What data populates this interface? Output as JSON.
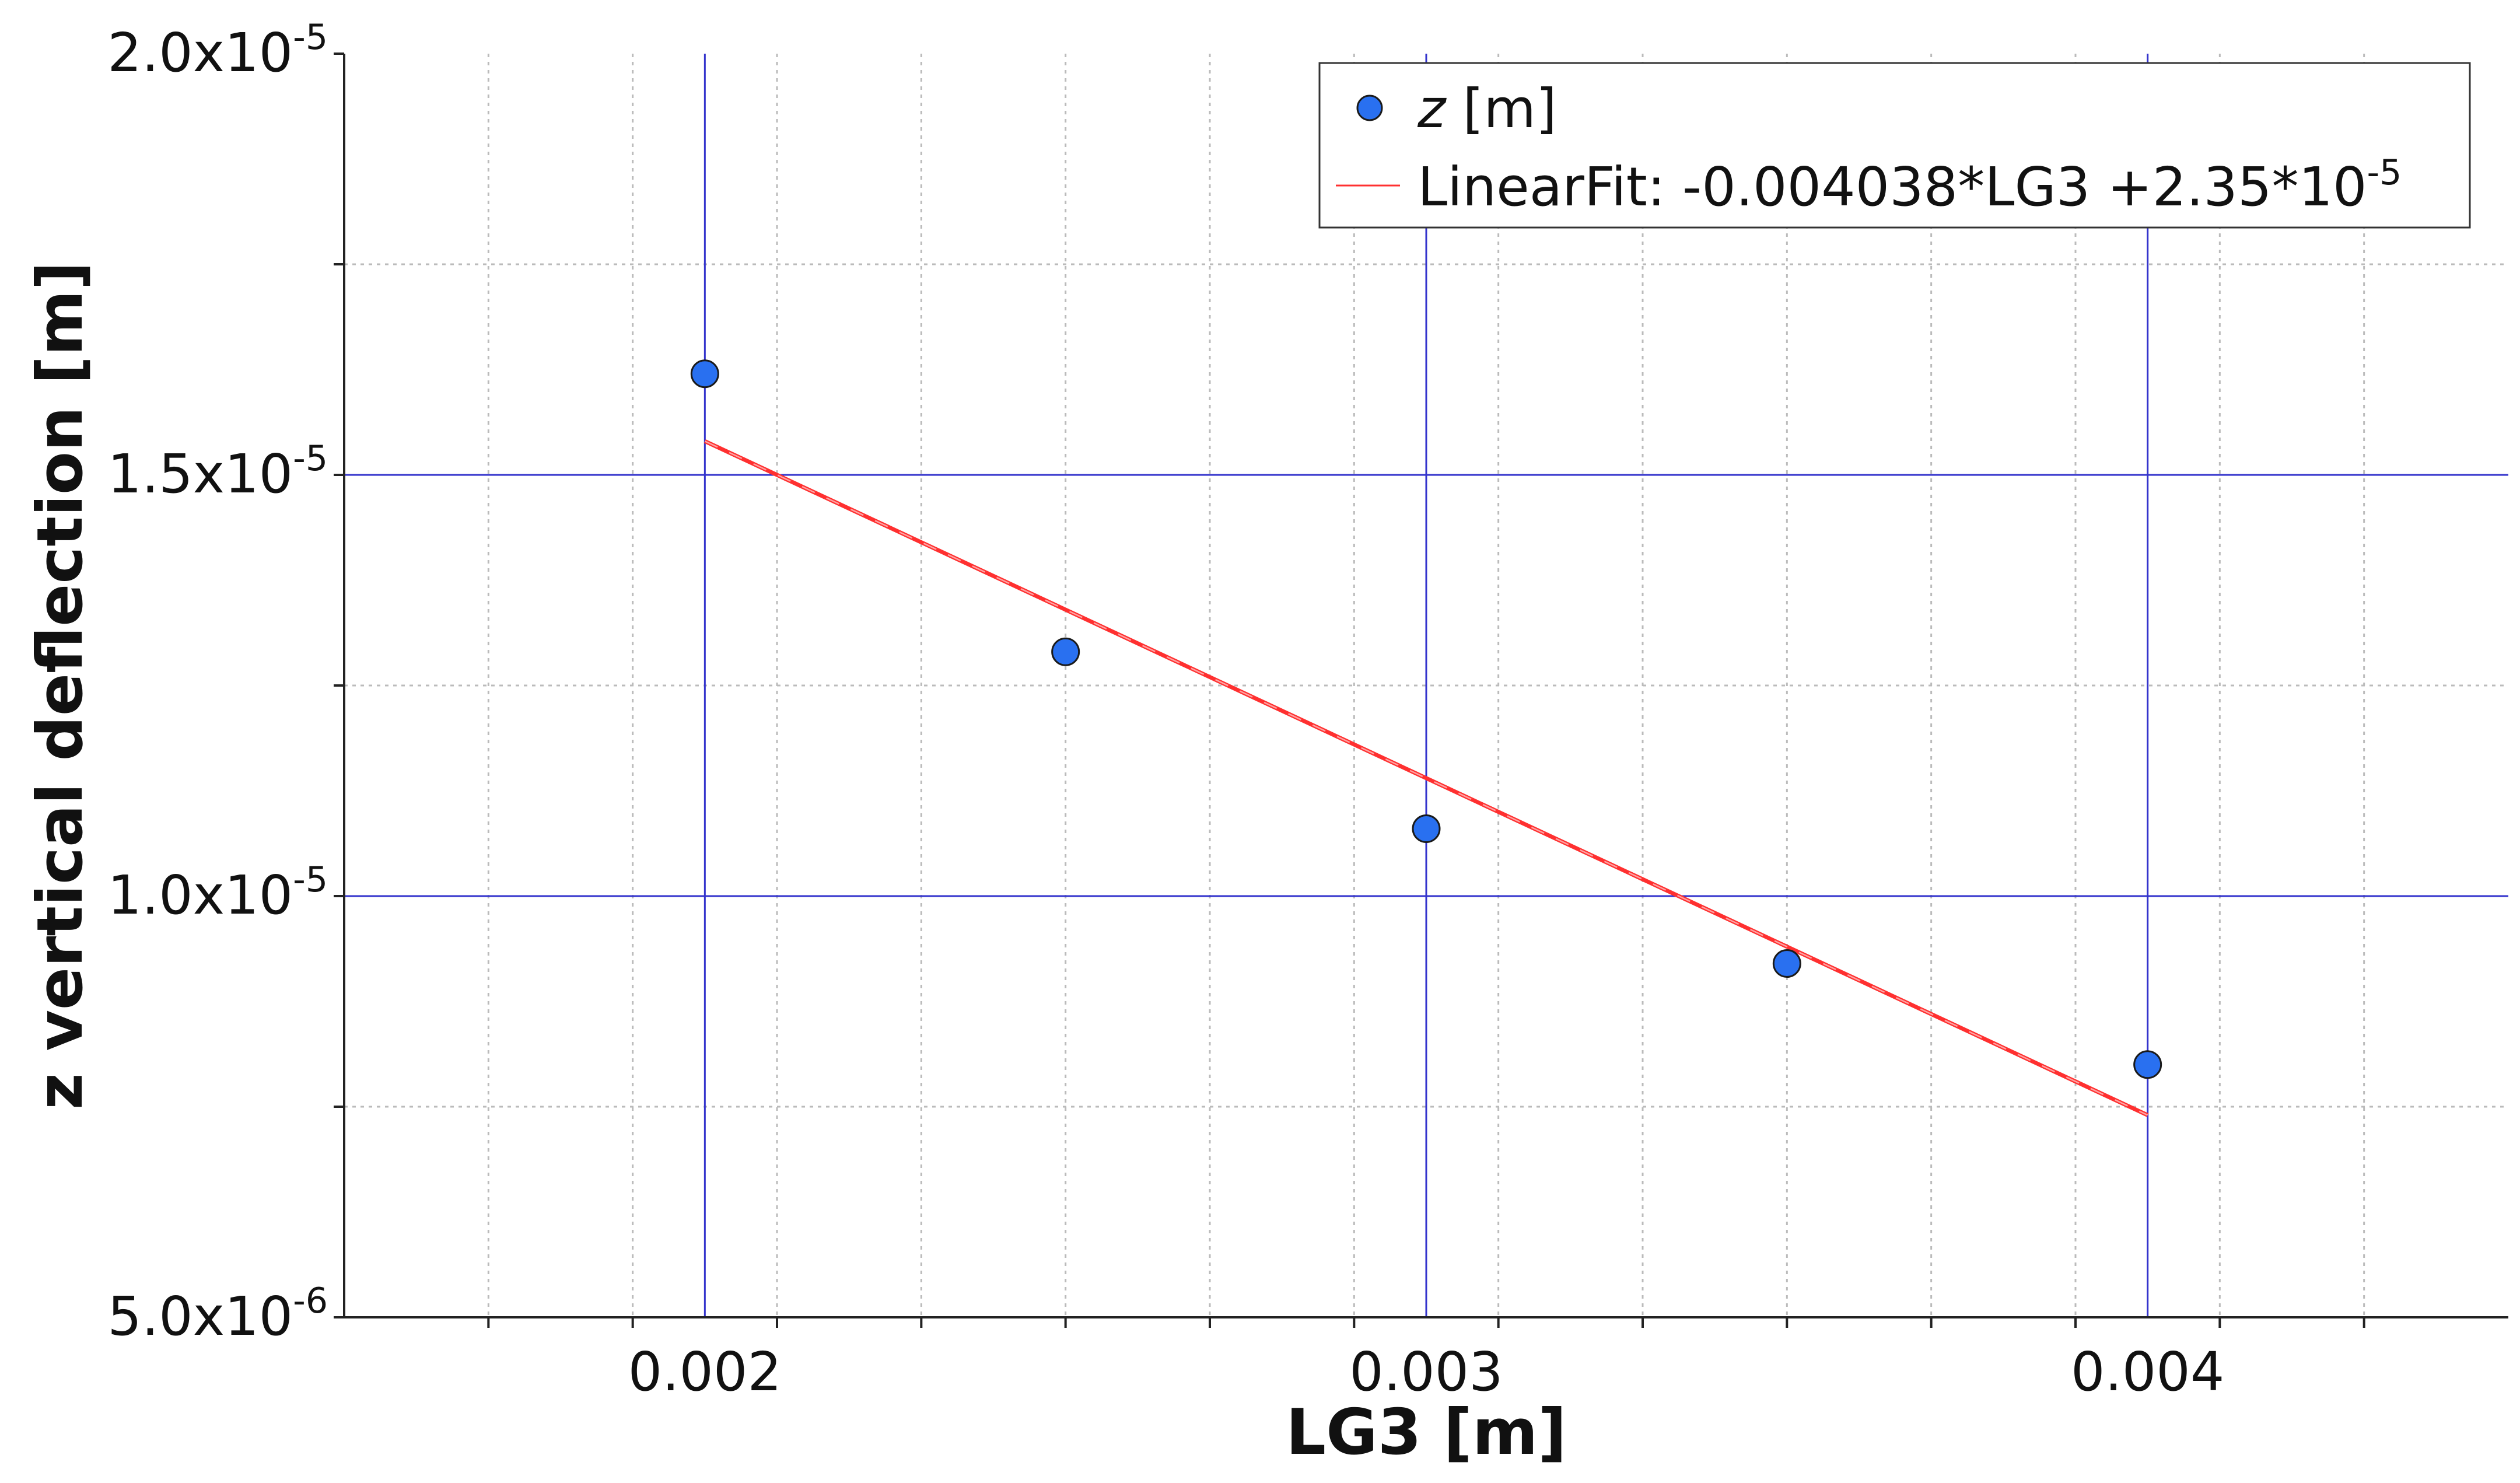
{
  "chart_data": {
    "type": "scatter",
    "xlabel": "LG3 [m]",
    "ylabel": "z vertical deflection [m]",
    "xlim": [
      0.0015,
      0.0045
    ],
    "ylim": [
      5e-06,
      2e-05
    ],
    "x_ticks": [
      {
        "value": 0.002,
        "label": "0.002"
      },
      {
        "value": 0.003,
        "label": "0.003"
      },
      {
        "value": 0.004,
        "label": "0.004"
      }
    ],
    "y_ticks": [
      {
        "value": 5e-06,
        "base": "5.0x10",
        "exp": "-6"
      },
      {
        "value": 1e-05,
        "base": "1.0x10",
        "exp": "-5"
      },
      {
        "value": 1.5e-05,
        "base": "1.5x10",
        "exp": "-5"
      },
      {
        "value": 2e-05,
        "base": "2.0x10",
        "exp": "-5"
      }
    ],
    "x_minor_step": 0.0002,
    "y_minor_step": 2.5e-06,
    "grid": true,
    "legend_position": "top-right",
    "series": [
      {
        "name_italic": "z",
        "name_rest": " [m]",
        "kind": "points",
        "color": "#2970f0",
        "x": [
          0.002,
          0.0025,
          0.003,
          0.0035,
          0.004
        ],
        "y": [
          1.62e-05,
          1.29e-05,
          1.08e-05,
          9.2e-06,
          8e-06
        ]
      },
      {
        "name": "LinearFit: -0.004038*LG3 +2.35*10",
        "name_sup": "-5",
        "kind": "line",
        "color": "#ff3030",
        "x": [
          0.002,
          0.004
        ],
        "y": [
          1.54e-05,
          7.4e-06
        ]
      }
    ],
    "colors": {
      "major_grid": "#3333cc",
      "minor_grid": "#bbbbbb",
      "frame": "#222222",
      "marker": "#2970f0",
      "fit": "#ff3030"
    }
  }
}
